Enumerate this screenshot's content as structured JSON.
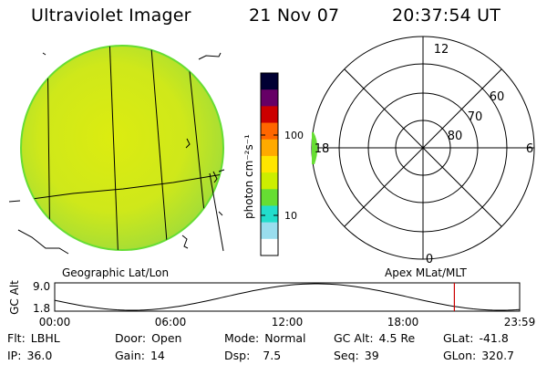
{
  "header": {
    "instrument": "Ultraviolet Imager",
    "date": "21 Nov 07",
    "time": "20:37:54 UT"
  },
  "left_panel": {
    "label": "Geographic Lat/Lon"
  },
  "colorbar": {
    "unit_label": "photon cm⁻²s⁻¹",
    "ticks": [
      "100",
      "10"
    ],
    "scale": "log",
    "colors": [
      "#000033",
      "#660066",
      "#cc0000",
      "#ff6600",
      "#ffaa00",
      "#ffe600",
      "#ccee00",
      "#66dd33",
      "#22ddcc",
      "#99ddee",
      "#ffffff"
    ]
  },
  "right_panel": {
    "label": "Apex MLat/MLT",
    "mlt_labels": {
      "top": "12",
      "bottom": "0",
      "left": "18",
      "right": "6"
    },
    "mlat_labels": [
      "60",
      "70",
      "80"
    ]
  },
  "altitude_plot": {
    "ylabel": "GC Alt",
    "ymax_label": "9.0",
    "ymin_label": "1.8",
    "xticks": [
      "00:00",
      "06:00",
      "12:00",
      "18:00",
      "23:59"
    ],
    "current_time_marker_hour": 20.63,
    "marker_color": "#cc0000"
  },
  "info": {
    "row1": [
      {
        "label": "Flt:",
        "value": "LBHL"
      },
      {
        "label": "Door:",
        "value": "Open"
      },
      {
        "label": "Mode:",
        "value": "Normal"
      },
      {
        "label": "GC Alt:",
        "value": "4.5 Re"
      },
      {
        "label": "GLat:",
        "value": "-41.8"
      }
    ],
    "row2": [
      {
        "label": "IP:",
        "value": "36.0"
      },
      {
        "label": "Gain:",
        "value": "14"
      },
      {
        "label": "Dsp:",
        "value": "7.5"
      },
      {
        "label": "Seq:",
        "value": "39"
      },
      {
        "label": "GLon:",
        "value": "320.7"
      }
    ]
  }
}
